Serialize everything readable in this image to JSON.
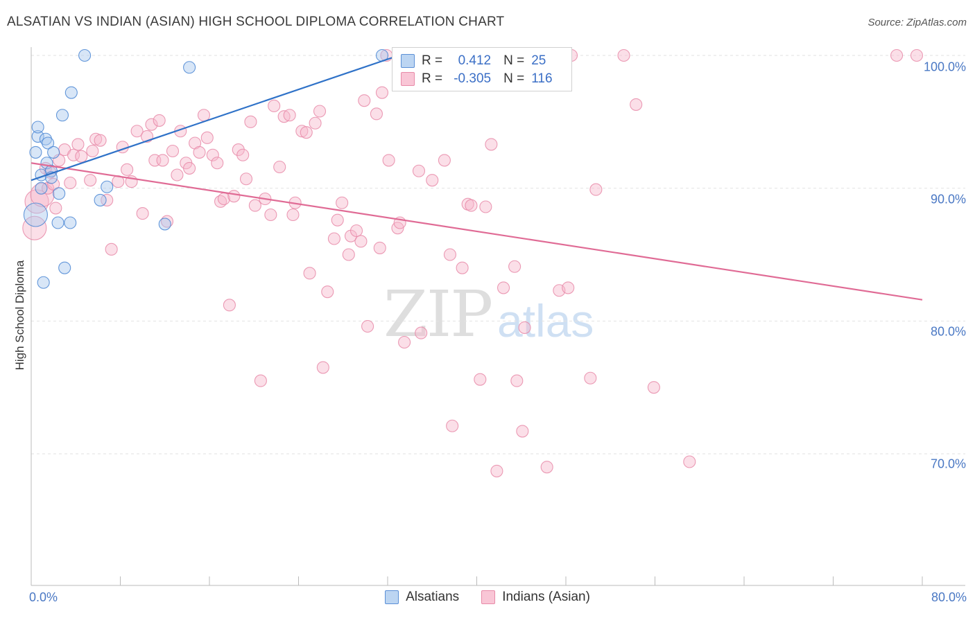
{
  "title": "ALSATIAN VS INDIAN (ASIAN) HIGH SCHOOL DIPLOMA CORRELATION CHART",
  "source": "Source: ZipAtlas.com",
  "watermark": {
    "zip": "ZIP",
    "atlas": "atlas"
  },
  "legend": {
    "r_label": "R =",
    "n_label": "N =",
    "alsatians": {
      "r": "0.412",
      "n": "25"
    },
    "indians": {
      "r": "-0.305",
      "n": "116"
    }
  },
  "colors": {
    "alsatians_fill": "#a8c8ee",
    "alsatians_stroke": "#4a86d4",
    "alsatians_line": "#2f72c8",
    "indians_fill": "#f7b8cc",
    "indians_stroke": "#e88aa8",
    "indians_line": "#e06b95",
    "tick_label": "#4a78c4"
  },
  "chart_data": {
    "type": "scatter",
    "title": "ALSATIAN VS INDIAN (ASIAN) HIGH SCHOOL DIPLOMA CORRELATION CHART",
    "xlabel": "",
    "ylabel": "High School Diploma",
    "xlim": [
      0,
      80
    ],
    "ylim": [
      60,
      100
    ],
    "x_tick_labels": [
      "0.0%",
      "80.0%"
    ],
    "y_tick_labels": [
      "100.0%",
      "90.0%",
      "80.0%",
      "70.0%"
    ],
    "y_ticks": [
      100,
      90,
      80,
      70
    ],
    "grid": true,
    "legend_position": "top-center",
    "series": [
      {
        "name": "Alsatians",
        "r": 0.412,
        "n": 25,
        "trend": {
          "x": [
            0,
            33
          ],
          "y": [
            90.6,
            100.0
          ]
        },
        "points": [
          [
            0.4,
            88.0
          ],
          [
            0.4,
            92.7
          ],
          [
            0.6,
            93.9
          ],
          [
            0.6,
            94.6
          ],
          [
            0.9,
            91.0
          ],
          [
            0.9,
            90.0
          ],
          [
            1.1,
            82.9
          ],
          [
            1.3,
            93.7
          ],
          [
            1.4,
            91.9
          ],
          [
            1.5,
            93.4
          ],
          [
            1.8,
            91.3
          ],
          [
            1.8,
            90.8
          ],
          [
            2.0,
            92.7
          ],
          [
            2.4,
            87.4
          ],
          [
            2.5,
            89.6
          ],
          [
            2.8,
            95.5
          ],
          [
            3.0,
            84.0
          ],
          [
            3.5,
            87.4
          ],
          [
            3.6,
            97.2
          ],
          [
            4.8,
            100.0
          ],
          [
            6.2,
            89.1
          ],
          [
            6.8,
            90.1
          ],
          [
            12.0,
            87.3
          ],
          [
            14.2,
            99.1
          ],
          [
            31.5,
            100.0
          ]
        ]
      },
      {
        "name": "Indians (Asian)",
        "r": -0.305,
        "n": 116,
        "trend": {
          "x": [
            0,
            80
          ],
          "y": [
            91.9,
            81.6
          ]
        },
        "points": [
          [
            0.3,
            87.0
          ],
          [
            0.5,
            89.0
          ],
          [
            1.0,
            89.5
          ],
          [
            1.3,
            91.5
          ],
          [
            1.5,
            90.0
          ],
          [
            1.7,
            91.2
          ],
          [
            2.0,
            90.3
          ],
          [
            2.2,
            88.5
          ],
          [
            2.5,
            92.1
          ],
          [
            3.0,
            92.9
          ],
          [
            3.5,
            90.4
          ],
          [
            3.8,
            92.5
          ],
          [
            4.2,
            93.3
          ],
          [
            4.5,
            92.4
          ],
          [
            5.3,
            90.6
          ],
          [
            5.5,
            92.8
          ],
          [
            5.8,
            93.7
          ],
          [
            6.2,
            93.6
          ],
          [
            6.8,
            89.1
          ],
          [
            7.2,
            85.4
          ],
          [
            7.8,
            90.5
          ],
          [
            8.2,
            93.1
          ],
          [
            8.6,
            91.4
          ],
          [
            9.0,
            90.5
          ],
          [
            9.5,
            94.3
          ],
          [
            10.0,
            88.1
          ],
          [
            10.4,
            93.9
          ],
          [
            10.8,
            94.8
          ],
          [
            11.1,
            92.1
          ],
          [
            11.5,
            95.1
          ],
          [
            11.8,
            92.1
          ],
          [
            12.2,
            87.5
          ],
          [
            12.7,
            92.8
          ],
          [
            13.1,
            91.0
          ],
          [
            13.4,
            94.3
          ],
          [
            13.9,
            91.9
          ],
          [
            14.2,
            91.5
          ],
          [
            14.7,
            93.4
          ],
          [
            15.1,
            92.7
          ],
          [
            15.5,
            95.5
          ],
          [
            15.8,
            93.8
          ],
          [
            16.3,
            92.5
          ],
          [
            16.7,
            91.9
          ],
          [
            17.0,
            89.0
          ],
          [
            17.3,
            89.2
          ],
          [
            17.8,
            81.2
          ],
          [
            18.2,
            89.4
          ],
          [
            18.6,
            92.9
          ],
          [
            19.0,
            92.5
          ],
          [
            19.3,
            90.7
          ],
          [
            19.7,
            95.0
          ],
          [
            20.1,
            88.7
          ],
          [
            20.6,
            75.5
          ],
          [
            21.0,
            89.2
          ],
          [
            21.5,
            88.0
          ],
          [
            21.8,
            96.2
          ],
          [
            22.3,
            91.6
          ],
          [
            22.7,
            95.4
          ],
          [
            23.2,
            95.5
          ],
          [
            23.5,
            88.0
          ],
          [
            23.7,
            88.9
          ],
          [
            24.3,
            94.3
          ],
          [
            24.7,
            94.2
          ],
          [
            25.0,
            83.6
          ],
          [
            25.5,
            94.9
          ],
          [
            25.9,
            95.8
          ],
          [
            26.2,
            76.5
          ],
          [
            26.6,
            82.2
          ],
          [
            27.2,
            86.2
          ],
          [
            27.5,
            87.6
          ],
          [
            27.9,
            88.9
          ],
          [
            28.5,
            85.0
          ],
          [
            28.7,
            86.4
          ],
          [
            29.2,
            86.8
          ],
          [
            29.6,
            86.0
          ],
          [
            29.9,
            96.6
          ],
          [
            30.2,
            79.6
          ],
          [
            31.0,
            95.6
          ],
          [
            31.3,
            85.5
          ],
          [
            31.5,
            97.2
          ],
          [
            31.9,
            100.0
          ],
          [
            32.1,
            92.1
          ],
          [
            32.9,
            87.0
          ],
          [
            33.1,
            87.4
          ],
          [
            33.5,
            78.4
          ],
          [
            34.8,
            91.3
          ],
          [
            35.0,
            79.1
          ],
          [
            36.0,
            90.6
          ],
          [
            37.1,
            92.1
          ],
          [
            37.6,
            85.0
          ],
          [
            37.8,
            72.1
          ],
          [
            38.7,
            84.0
          ],
          [
            39.2,
            88.8
          ],
          [
            39.5,
            88.7
          ],
          [
            40.3,
            75.6
          ],
          [
            40.8,
            88.6
          ],
          [
            41.3,
            93.3
          ],
          [
            41.8,
            68.7
          ],
          [
            42.4,
            82.5
          ],
          [
            43.4,
            84.1
          ],
          [
            43.6,
            75.5
          ],
          [
            44.1,
            71.7
          ],
          [
            44.3,
            79.5
          ],
          [
            46.3,
            69.0
          ],
          [
            47.4,
            82.3
          ],
          [
            48.2,
            82.5
          ],
          [
            50.2,
            75.7
          ],
          [
            50.7,
            89.9
          ],
          [
            54.3,
            96.3
          ],
          [
            55.9,
            75.0
          ],
          [
            59.1,
            69.4
          ],
          [
            77.7,
            100.0
          ],
          [
            79.5,
            100.0
          ],
          [
            48.5,
            100.0
          ],
          [
            34.2,
            100.0
          ],
          [
            53.2,
            100.0
          ]
        ]
      }
    ]
  }
}
